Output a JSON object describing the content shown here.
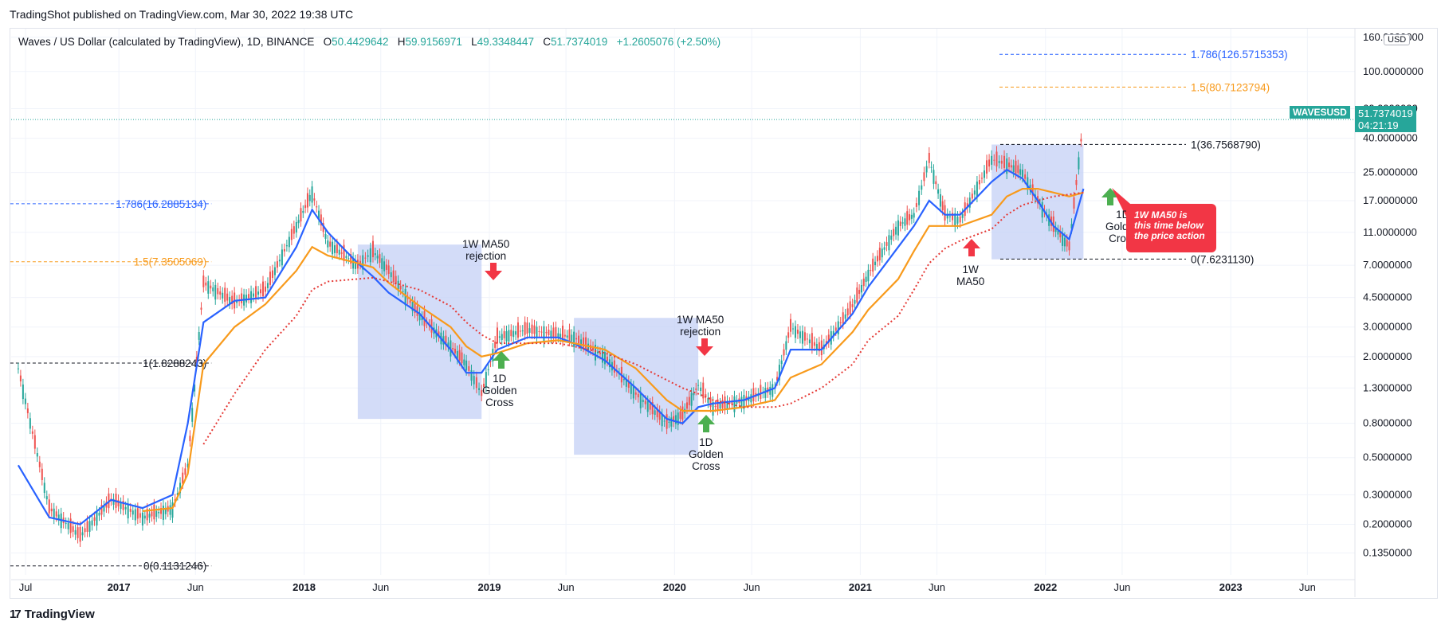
{
  "header": {
    "published": "TradingShot published on TradingView.com, Mar 30, 2022 19:38 UTC"
  },
  "legend": {
    "symbol": "Waves / US Dollar (calculated by TradingView), 1D, BINANCE",
    "o_label": "O",
    "o": "50.4429642",
    "h_label": "H",
    "h": "59.9156971",
    "l_label": "L",
    "l": "49.3348447",
    "c_label": "C",
    "c": "51.7374019",
    "change": "+1.2605076 (+2.50%)"
  },
  "price_scale": {
    "currency": "USD",
    "symbol_badge": "WAVESUSD",
    "last_price": "51.7374019",
    "countdown": "04:21:19"
  },
  "annotations": {
    "rejection1": [
      "1W MA50",
      "rejection"
    ],
    "rejection2": [
      "1W MA50",
      "rejection"
    ],
    "golden1": [
      "1D",
      "Golden",
      "Cross"
    ],
    "golden2": [
      "1D",
      "Golden",
      "Cross"
    ],
    "golden3": [
      "1D",
      "Golden",
      "Cross"
    ],
    "ma50_label": [
      "1W",
      "MA50"
    ],
    "callout": [
      "1W MA50 is",
      "this time below",
      "the price action"
    ]
  },
  "footer": {
    "brand": "TradingView"
  },
  "colors": {
    "up": "#26a69a",
    "down": "#ef5350",
    "blue_ma": "#2962ff",
    "orange_ma": "#f89a1b",
    "red_ma": "#e53935",
    "fib_blue": "#2962ff",
    "fib_orange": "#f89a1b",
    "box": "#c4d0f5",
    "arrow_red": "#f23645",
    "arrow_green": "#4caf50"
  },
  "chart_data": {
    "type": "line",
    "title": "Waves / US Dollar (calculated by TradingView), 1D, BINANCE",
    "y_scale": "log",
    "y_ticks": [
      "160.0000000",
      "100.0000000",
      "60.0000000",
      "40.0000000",
      "25.0000000",
      "17.0000000",
      "11.0000000",
      "7.0000000",
      "4.5000000",
      "3.0000000",
      "2.0000000",
      "1.3000000",
      "0.8000000",
      "0.5000000",
      "0.3000000",
      "0.2000000",
      "0.1350000"
    ],
    "x_ticks": [
      "Jul",
      "2017",
      "Jun",
      "2018",
      "Jun",
      "2019",
      "Jun",
      "2020",
      "Jun",
      "2021",
      "Jun",
      "2022",
      "Jun",
      "2023",
      "Jun"
    ],
    "fib_levels": [
      {
        "label": "1.786(16.2885134)",
        "value": 16.2885134
      },
      {
        "label": "1.5(7.3505069)",
        "value": 7.3505069
      },
      {
        "label": "1(1.8288243)",
        "value": 1.8288243
      },
      {
        "label": "0(0.1131246)",
        "value": 0.1131246
      },
      {
        "label": "1.786(126.5715353)",
        "value": 126.5715353
      },
      {
        "label": "1.5(80.7123794)",
        "value": 80.7123794
      },
      {
        "label": "1(36.7568790)",
        "value": 36.756879
      },
      {
        "label": "0(7.6231130)",
        "value": 7.623113
      }
    ],
    "series": [
      {
        "x": [
          "2016-06",
          "2016-08",
          "2016-10",
          "2016-12",
          "2017-02",
          "2017-04",
          "2017-05",
          "2017-06",
          "2017-08",
          "2017-10",
          "2017-12",
          "2018-01",
          "2018-02",
          "2018-04",
          "2018-05",
          "2018-06",
          "2018-08",
          "2018-10",
          "2018-11",
          "2018-12",
          "2019-01",
          "2019-03",
          "2019-05",
          "2019-06",
          "2019-08",
          "2019-10",
          "2019-12",
          "2020-01",
          "2020-02",
          "2020-03",
          "2020-05",
          "2020-07",
          "2020-08",
          "2020-10",
          "2020-12",
          "2021-01",
          "2021-03",
          "2021-04",
          "2021-05",
          "2021-06",
          "2021-07",
          "2021-09",
          "2021-10",
          "2021-11",
          "2021-12",
          "2022-01",
          "2022-02",
          "2022-03"
        ],
        "values": [
          1.7,
          0.25,
          0.17,
          0.28,
          0.22,
          0.25,
          0.45,
          5.5,
          4.2,
          5.0,
          12,
          19,
          9.5,
          7.0,
          8.5,
          6.5,
          3.5,
          2.3,
          1.8,
          1.2,
          2.6,
          2.9,
          2.7,
          2.6,
          2.0,
          1.2,
          0.8,
          0.9,
          1.35,
          1.0,
          1.1,
          1.3,
          3.0,
          2.2,
          4.0,
          6.2,
          12,
          14,
          30,
          14,
          13,
          30,
          28,
          25,
          17,
          12,
          9,
          52
        ]
      }
    ],
    "moving_averages": [
      {
        "values": [
          0.45,
          0.22,
          0.2,
          0.28,
          0.25,
          0.3,
          0.8,
          3.2,
          4.3,
          4.5,
          9,
          15,
          11,
          7.2,
          6.0,
          4.8,
          3.6,
          2.2,
          1.6,
          1.6,
          2.2,
          2.6,
          2.6,
          2.4,
          1.9,
          1.3,
          0.85,
          0.8,
          1.0,
          1.05,
          1.1,
          1.3,
          2.2,
          2.2,
          3.6,
          5.2,
          9,
          12,
          17,
          14,
          14,
          22,
          26,
          23,
          17,
          12,
          10,
          20
        ]
      },
      {
        "values": [
          null,
          null,
          null,
          null,
          0.24,
          0.25,
          0.4,
          1.8,
          3.0,
          4.1,
          6.5,
          9,
          8,
          7.2,
          6.8,
          5.5,
          4.0,
          3.0,
          2.3,
          2.0,
          2.1,
          2.4,
          2.5,
          2.4,
          2.2,
          1.7,
          1.1,
          0.95,
          0.95,
          0.95,
          1.0,
          1.1,
          1.5,
          1.8,
          2.8,
          3.8,
          5.8,
          8.5,
          12,
          12,
          12,
          14,
          18,
          20,
          20,
          19,
          18,
          19
        ]
      },
      {
        "values": [
          null,
          null,
          null,
          null,
          null,
          null,
          null,
          0.6,
          1.2,
          2.2,
          3.5,
          5.0,
          5.6,
          5.8,
          5.9,
          5.6,
          5.0,
          4.0,
          3.2,
          2.7,
          2.4,
          2.4,
          2.4,
          2.3,
          2.1,
          1.8,
          1.45,
          1.3,
          1.2,
          1.1,
          1.0,
          1.0,
          1.05,
          1.3,
          1.8,
          2.5,
          3.5,
          5.0,
          7.2,
          8.8,
          9.8,
          11.5,
          14,
          16,
          17,
          18,
          18.5,
          19
        ]
      }
    ]
  }
}
